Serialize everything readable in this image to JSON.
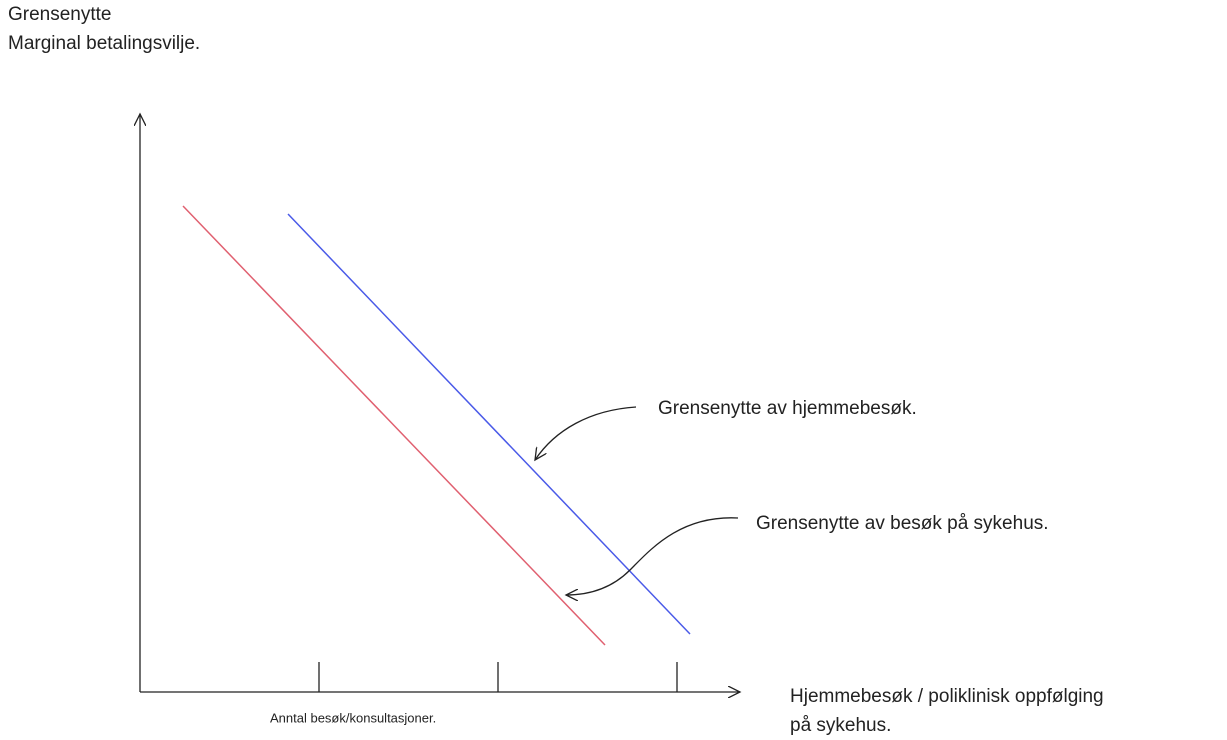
{
  "y_axis_label": [
    "Grensenytte",
    "Marginal betalingsvilje."
  ],
  "x_axis_label": [
    "Hjemmebesøk / poliklinisk oppfølging",
    "på sykehus."
  ],
  "x_axis_sublabel": "Anntal besøk/konsultasjoner.",
  "annotations": [
    "Grensenytte av hjemmebesøk.",
    "Grensenytte av besøk på sykehus."
  ]
}
